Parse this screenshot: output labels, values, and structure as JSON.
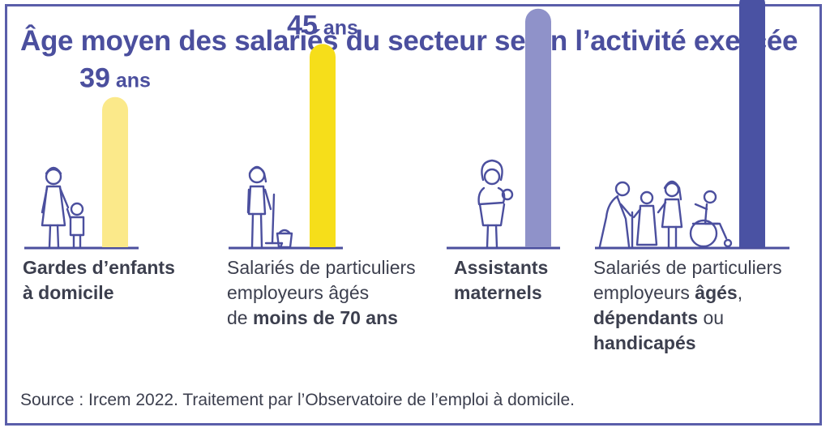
{
  "title": "Âge moyen des salariés du secteur selon l’activité exercée",
  "source": "Source : Ircem 2022. Traitement par l’Observatoire de l’emploi à domicile.",
  "colors": {
    "frame": "#5a5eaa",
    "title": "#4b4f9e",
    "text": "#3c3f4e",
    "bars": [
      "#fbe98a",
      "#f6de1a",
      "#8f92c9",
      "#4a52a3"
    ]
  },
  "chart_data": {
    "type": "bar",
    "title": "Âge moyen des salariés du secteur selon l’activité exercée",
    "unit": "ans",
    "categories": [
      "Gardes d’enfants à domicile",
      "Salariés de particuliers employeurs âgés de moins de 70 ans",
      "Assistants maternels",
      "Salariés de particuliers employeurs âgés, dépendants ou handicapés"
    ],
    "values": [
      39,
      45,
      49,
      51
    ]
  },
  "captions": [
    [
      {
        "t": "Gardes d’enfants",
        "b": true
      },
      {
        "br": true
      },
      {
        "t": "à domicile",
        "b": true
      }
    ],
    [
      {
        "t": "Salariés de particuliers"
      },
      {
        "br": true
      },
      {
        "t": "employeurs âgés"
      },
      {
        "br": true
      },
      {
        "t": "de "
      },
      {
        "t": "moins de 70 ans",
        "b": true
      }
    ],
    [
      {
        "t": "Assistants",
        "b": true
      },
      {
        "br": true
      },
      {
        "t": "maternels",
        "b": true
      }
    ],
    [
      {
        "t": "Salariés de particuliers"
      },
      {
        "br": true
      },
      {
        "t": "employeurs "
      },
      {
        "t": "âgés",
        "b": true
      },
      {
        "t": ","
      },
      {
        "br": true
      },
      {
        "t": "dépendants",
        "b": true
      },
      {
        "t": " ou"
      },
      {
        "br": true
      },
      {
        "t": "handicapés",
        "b": true
      }
    ]
  ],
  "icons": [
    "nanny-with-child-icon",
    "housekeeper-with-mop-icon",
    "mother-holding-baby-icon",
    "elderly-and-disabled-people-icon"
  ]
}
